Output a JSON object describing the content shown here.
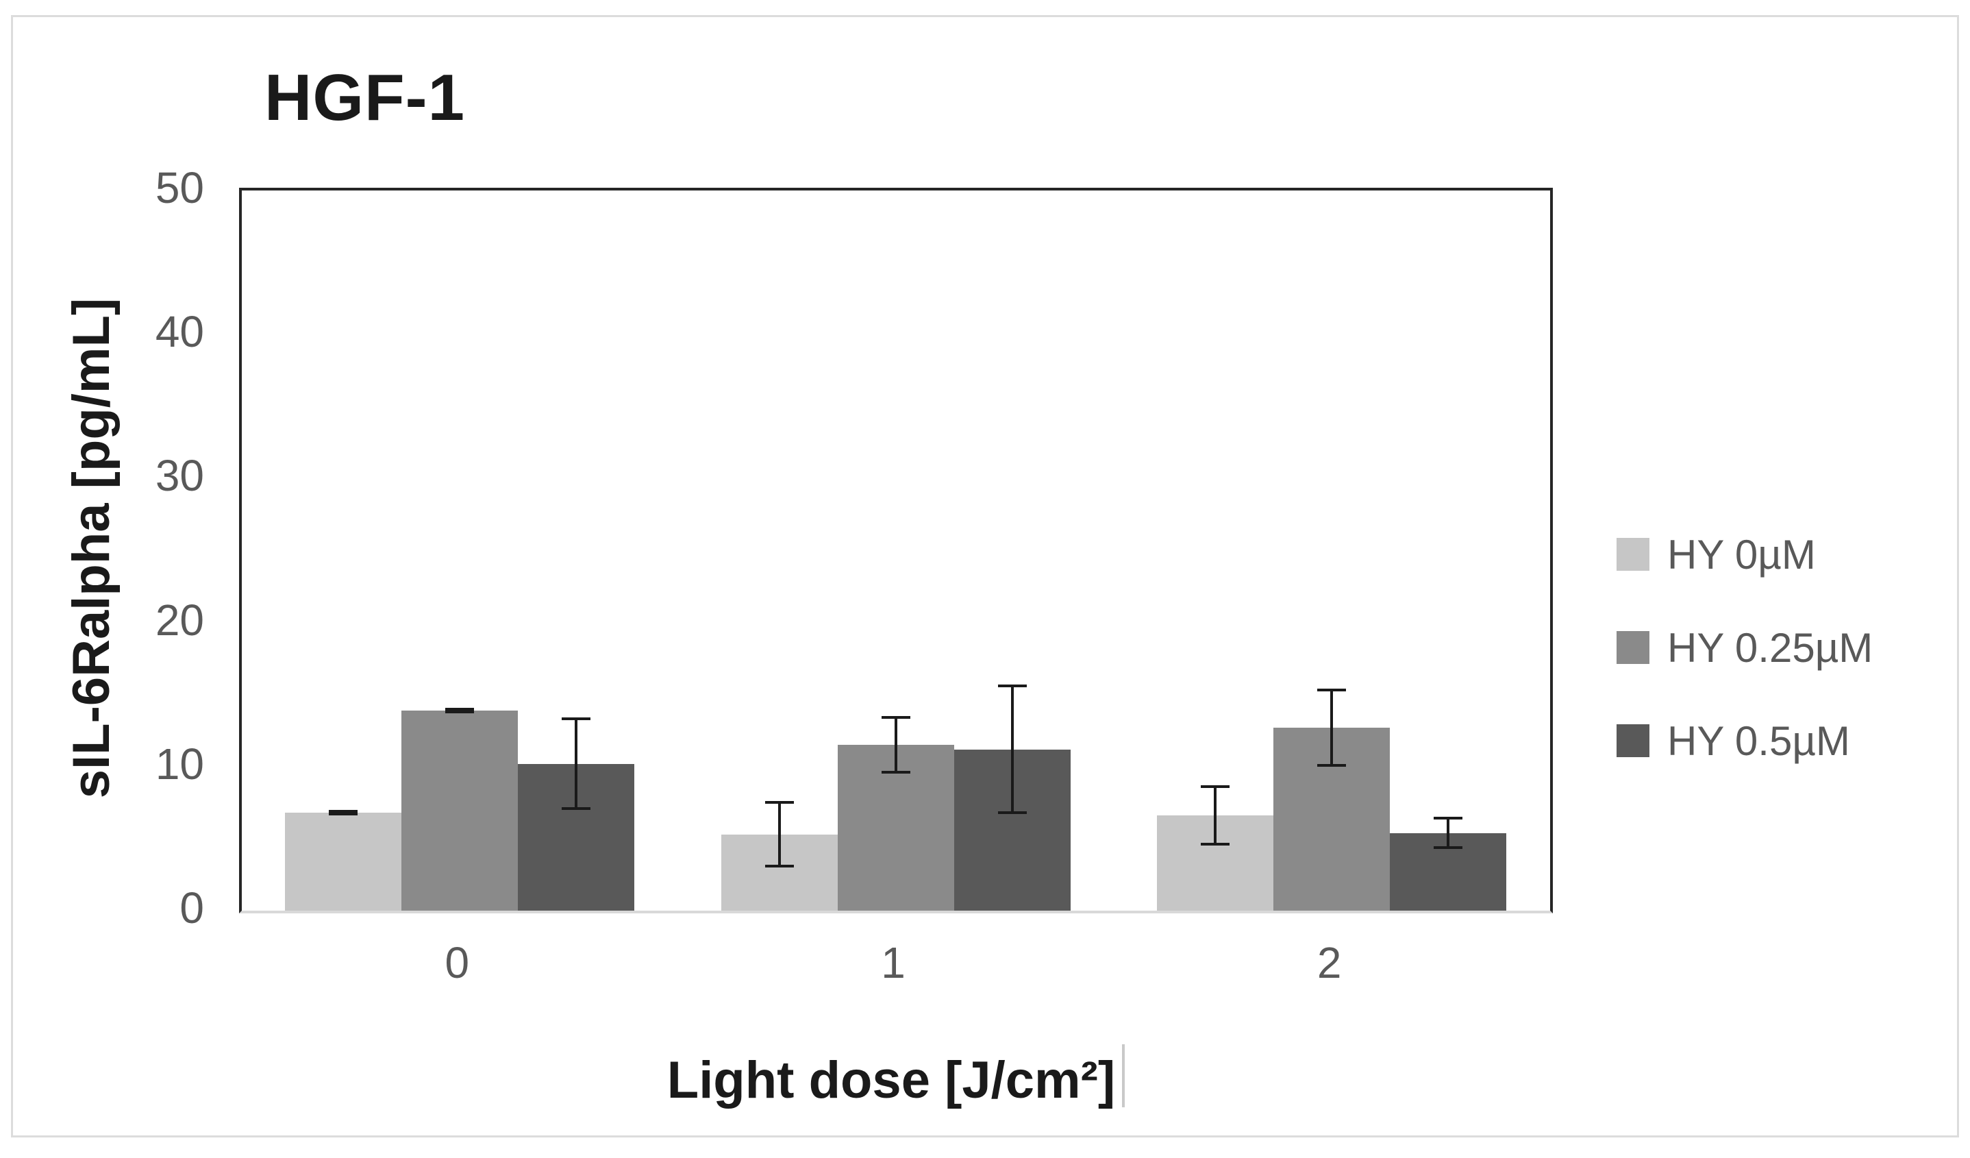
{
  "figure": {
    "background": "#ffffff",
    "border_color": "#dcdcdc"
  },
  "chart_data": {
    "type": "bar",
    "title": "HGF-1",
    "xlabel": "Light dose [J/cm²]",
    "ylabel": "sIL-6Ralpha [pg/mL]",
    "categories": [
      "0",
      "1",
      "2"
    ],
    "series": [
      {
        "name": "HY 0µM",
        "color": "#c6c6c6",
        "values": [
          6.8,
          5.3,
          6.6
        ],
        "errors": [
          0.2,
          2.3,
          2.1
        ]
      },
      {
        "name": "HY 0.25µM",
        "color": "#8a8a8a",
        "values": [
          13.9,
          11.5,
          12.7
        ],
        "errors": [
          0.2,
          2.0,
          2.7
        ]
      },
      {
        "name": "HY 0.5µM",
        "color": "#595959",
        "values": [
          10.2,
          11.2,
          5.4
        ],
        "errors": [
          3.2,
          4.5,
          1.1
        ]
      }
    ],
    "ylim": [
      0,
      50
    ],
    "yticks": [
      0,
      10,
      20,
      30,
      40,
      50
    ],
    "grid": false,
    "legend_position": "right",
    "error_bar_color": "#1a1a1a",
    "axis_colors": {
      "frame": "#262626",
      "baseline": "#d9d9d9"
    },
    "text_colors": {
      "title": "#1a1a1a",
      "axis_title": "#1a1a1a",
      "tick": "#595959",
      "legend": "#595959"
    },
    "text_cursor_after_xlabel": true
  }
}
